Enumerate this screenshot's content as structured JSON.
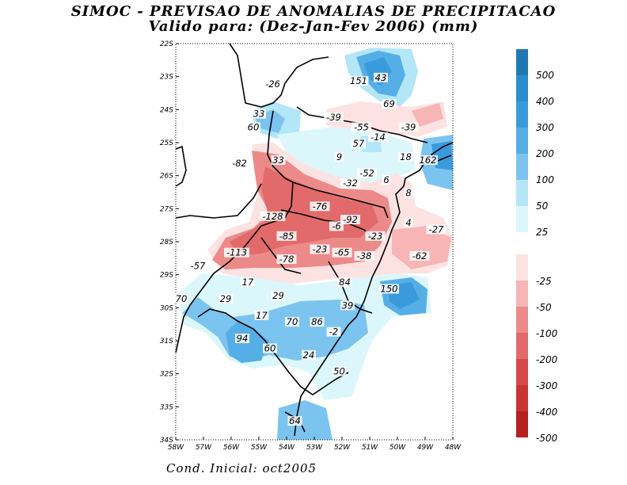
{
  "title": {
    "line1": "SIMOC - PREVISAO DE ANOMALIAS DE PRECIPITACAO",
    "line2": "Valido para: (Dez-Jan-Fev 2006) (mm)"
  },
  "footer": "Cond. Inicial: oct2005",
  "axes": {
    "lat_labels": [
      "22S",
      "23S",
      "24S",
      "25S",
      "26S",
      "27S",
      "28S",
      "29S",
      "30S",
      "31S",
      "32S",
      "33S",
      "34S"
    ],
    "lon_labels": [
      "58W",
      "57W",
      "56W",
      "55W",
      "54W",
      "53W",
      "52W",
      "51W",
      "50W",
      "49W",
      "48W"
    ]
  },
  "colorbar": {
    "positive": [
      {
        "label": "500",
        "color": "#1f78b4"
      },
      {
        "label": "400",
        "color": "#2b8cd0"
      },
      {
        "label": "300",
        "color": "#3a9bdc"
      },
      {
        "label": "200",
        "color": "#56aee6"
      },
      {
        "label": "100",
        "color": "#7cc4f0"
      },
      {
        "label": "50",
        "color": "#b3e6f7"
      },
      {
        "label": "25",
        "color": "#dcf7fb"
      }
    ],
    "negative": [
      {
        "label": "-25",
        "color": "#fde2e2"
      },
      {
        "label": "-50",
        "color": "#f7b5b5"
      },
      {
        "label": "-100",
        "color": "#ec8a8a"
      },
      {
        "label": "-200",
        "color": "#e36a6a"
      },
      {
        "label": "-300",
        "color": "#d84848"
      },
      {
        "label": "-400",
        "color": "#c93333"
      },
      {
        "label": "-500",
        "color": "#b81f1f"
      }
    ]
  },
  "values": [
    {
      "v": "-26",
      "lon": -54.5,
      "lat": -23.3
    },
    {
      "v": "151",
      "lon": -51.4,
      "lat": -23.2
    },
    {
      "v": "43",
      "lon": -50.6,
      "lat": -23.1
    },
    {
      "v": "69",
      "lon": -50.3,
      "lat": -23.9
    },
    {
      "v": "33",
      "lon": -55.0,
      "lat": -24.2
    },
    {
      "v": "60",
      "lon": -55.2,
      "lat": -24.6
    },
    {
      "v": "-39",
      "lon": -52.3,
      "lat": -24.3
    },
    {
      "v": "-55",
      "lon": -51.3,
      "lat": -24.6
    },
    {
      "v": "-39",
      "lon": -49.6,
      "lat": -24.6
    },
    {
      "v": "-14",
      "lon": -50.7,
      "lat": -24.9
    },
    {
      "v": "57",
      "lon": -51.4,
      "lat": -25.1
    },
    {
      "v": "18",
      "lon": -49.7,
      "lat": -25.5
    },
    {
      "v": "162",
      "lon": -48.9,
      "lat": -25.6
    },
    {
      "v": "33",
      "lon": -54.3,
      "lat": -25.6
    },
    {
      "v": "9",
      "lon": -52.1,
      "lat": -25.5
    },
    {
      "v": "-82",
      "lon": -55.7,
      "lat": -25.7
    },
    {
      "v": "-52",
      "lon": -51.1,
      "lat": -26.0
    },
    {
      "v": "6",
      "lon": -50.4,
      "lat": -26.2
    },
    {
      "v": "-32",
      "lon": -51.7,
      "lat": -26.3
    },
    {
      "v": "8",
      "lon": -49.6,
      "lat": -26.6
    },
    {
      "v": "-76",
      "lon": -52.8,
      "lat": -27.0
    },
    {
      "v": "-128",
      "lon": -54.5,
      "lat": -27.3
    },
    {
      "v": "-92",
      "lon": -51.7,
      "lat": -27.4
    },
    {
      "v": "-6",
      "lon": -52.2,
      "lat": -27.6
    },
    {
      "v": "4",
      "lon": -49.6,
      "lat": -27.5
    },
    {
      "v": "-27",
      "lon": -48.6,
      "lat": -27.7
    },
    {
      "v": "-23",
      "lon": -50.8,
      "lat": -27.9
    },
    {
      "v": "-85",
      "lon": -54.0,
      "lat": -27.9
    },
    {
      "v": "-113",
      "lon": -55.8,
      "lat": -28.4
    },
    {
      "v": "-78",
      "lon": -54.0,
      "lat": -28.6
    },
    {
      "v": "-23",
      "lon": -52.8,
      "lat": -28.3
    },
    {
      "v": "-65",
      "lon": -52.0,
      "lat": -28.4
    },
    {
      "v": "-38",
      "lon": -51.2,
      "lat": -28.5
    },
    {
      "v": "-62",
      "lon": -49.2,
      "lat": -28.5
    },
    {
      "v": "-57",
      "lon": -57.2,
      "lat": -28.8
    },
    {
      "v": "17",
      "lon": -55.4,
      "lat": -29.3
    },
    {
      "v": "84",
      "lon": -51.9,
      "lat": -29.3
    },
    {
      "v": "150",
      "lon": -50.3,
      "lat": -29.5
    },
    {
      "v": "70",
      "lon": -57.8,
      "lat": -29.8
    },
    {
      "v": "29",
      "lon": -56.2,
      "lat": -29.8
    },
    {
      "v": "29",
      "lon": -54.3,
      "lat": -29.7
    },
    {
      "v": "39",
      "lon": -51.8,
      "lat": -30.0
    },
    {
      "v": "17",
      "lon": -54.9,
      "lat": -30.3
    },
    {
      "v": "70",
      "lon": -53.8,
      "lat": -30.5
    },
    {
      "v": "86",
      "lon": -52.9,
      "lat": -30.5
    },
    {
      "v": "-2",
      "lon": -52.3,
      "lat": -30.8
    },
    {
      "v": "94",
      "lon": -55.6,
      "lat": -31.0
    },
    {
      "v": "60",
      "lon": -54.6,
      "lat": -31.3
    },
    {
      "v": "24",
      "lon": -53.2,
      "lat": -31.5
    },
    {
      "v": "50",
      "lon": -52.1,
      "lat": -32.0
    },
    {
      "v": "64",
      "lon": -53.7,
      "lat": -33.5
    }
  ]
}
